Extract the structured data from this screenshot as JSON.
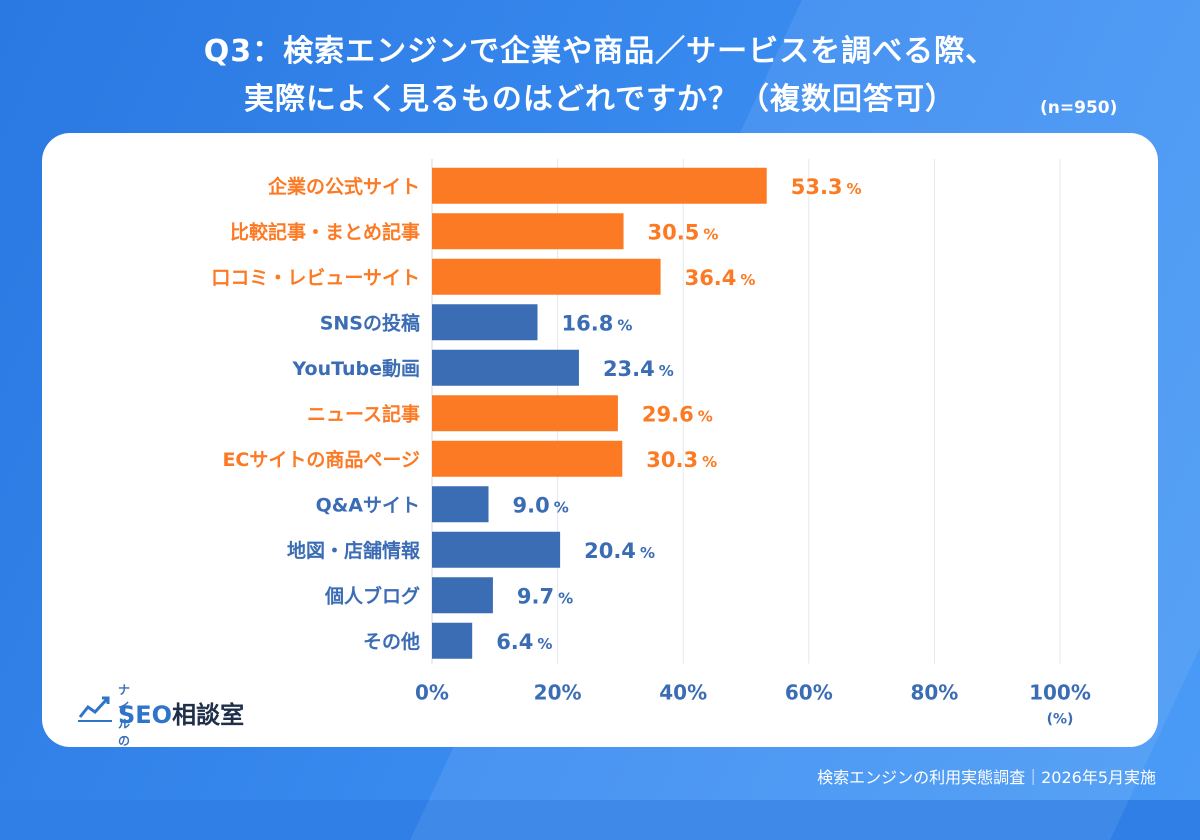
{
  "title_line1": "Q3：検索エンジンで企業や商品／サービスを調べる際、",
  "title_line2": "実際によく見るものはどれですか？（複数回答可）",
  "sample_label": "(n=950)",
  "footer": "検索エンジンの利用実態調査｜2026年5月実施",
  "logo": {
    "small": "ナイルの",
    "main_seo": "SEO",
    "main_rest": "相談室",
    "icon": "trend-line-icon"
  },
  "colors": {
    "orange": "#fc7a24",
    "blue": "#3b6db5",
    "grid": "#e2e8ef",
    "axis": "#3b6db5"
  },
  "chart_data": {
    "type": "bar",
    "orientation": "horizontal",
    "categories": [
      "企業の公式サイト",
      "比較記事・まとめ記事",
      "口コミ・レビューサイト",
      "SNSの投稿",
      "YouTube動画",
      "ニュース記事",
      "ECサイトの商品ページ",
      "Q&Aサイト",
      "地図・店舗情報",
      "個人ブログ",
      "その他"
    ],
    "values": [
      53.3,
      30.5,
      36.4,
      16.8,
      23.4,
      29.6,
      30.3,
      9.0,
      20.4,
      9.7,
      6.4
    ],
    "value_labels": [
      "53.3",
      "30.5",
      "36.4",
      "16.8",
      "23.4",
      "29.6",
      "30.3",
      "9.0",
      "20.4",
      "9.7",
      "6.4"
    ],
    "value_unit": "%",
    "highlight": [
      true,
      true,
      true,
      false,
      false,
      true,
      true,
      false,
      false,
      false,
      false
    ],
    "xlim": [
      0,
      100
    ],
    "xticks": [
      "0%",
      "20%",
      "40%",
      "60%",
      "80%",
      "100%"
    ],
    "xtick_values": [
      0,
      20,
      40,
      60,
      80,
      100
    ],
    "xunit": "(%)",
    "grid": true
  }
}
